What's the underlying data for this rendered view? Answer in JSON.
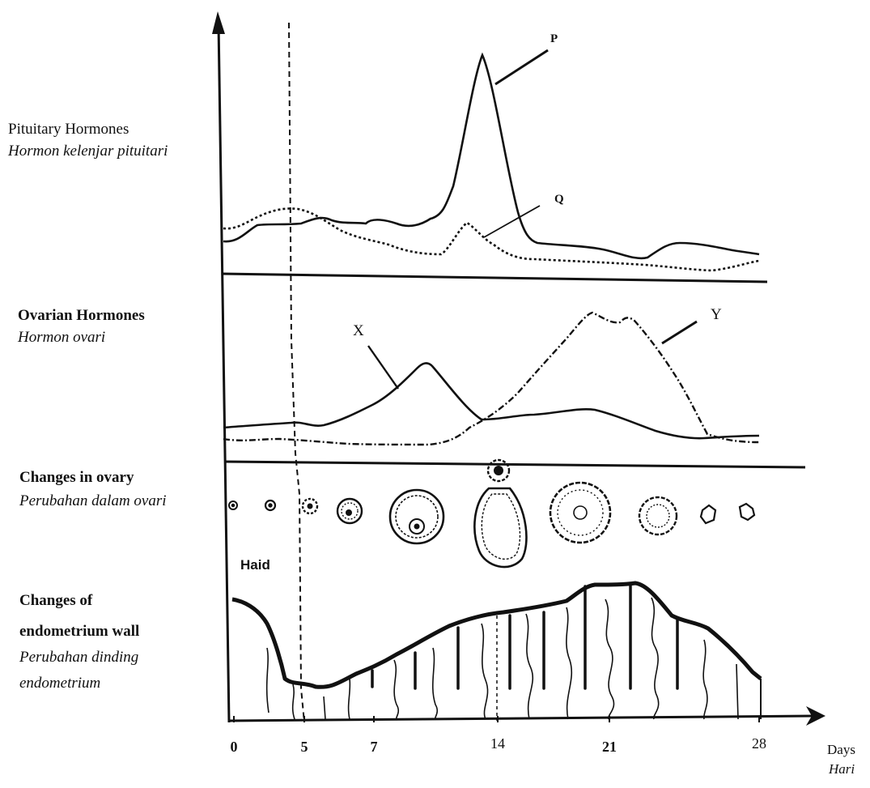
{
  "sections": {
    "pituitary": {
      "title": "Pituitary Hormones",
      "title_ms": "Hormon kelenjar pituitari"
    },
    "ovarian": {
      "title": "Ovarian Hormones",
      "title_ms": "Hormon ovari"
    },
    "ovary_changes": {
      "title": "Changes in ovary",
      "title_ms": "Perubahan dalam ovari"
    },
    "endometrium": {
      "title_line1": "Changes of",
      "title_line2": "endometrium wall",
      "title_ms_line1": "Perubahan dinding",
      "title_ms_line2": "endometrium"
    }
  },
  "curve_labels": {
    "p": "P",
    "q": "Q",
    "x": "X",
    "y": "Y"
  },
  "menstruation_label": "Haid",
  "x_axis": {
    "label": "Days",
    "label_ms": "Hari",
    "ticks": [
      "0",
      "5",
      "7",
      "14",
      "21",
      "28"
    ]
  },
  "colors": {
    "ink": "#111111",
    "paper": "#ffffff"
  }
}
